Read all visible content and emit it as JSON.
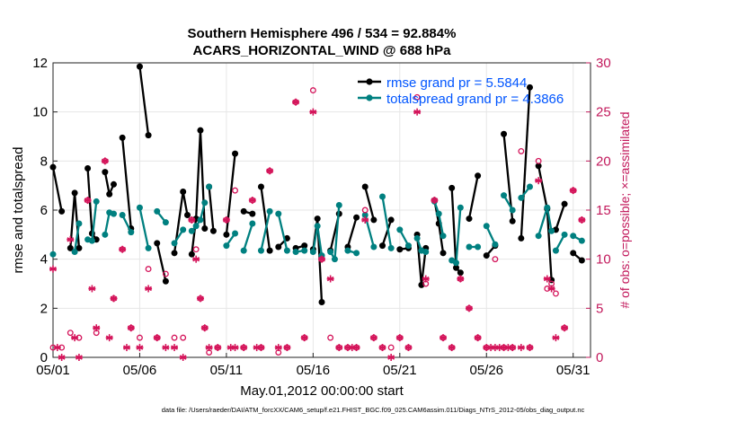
{
  "chart_data": {
    "type": "scatter",
    "title": "Southern Hemisphere 496 / 534 = 92.884%",
    "subtitle": "ACARS_HORIZONTAL_WIND @ 688 hPa",
    "xlabel": "May.01,2012 00:00:00 start",
    "ylabel": "rmse and totalspread",
    "ylabel_right": "# of obs: o=possible; ×=assimilated",
    "footer": "data file: /Users/raeder/DAI/ATM_forcXX/CAM6_setup/f.e21.FHIST_BGC.f09_025.CAM6assim.011/Diags_NTrS_2012-05/obs_diag_output.nc",
    "x_range": [
      1,
      32
    ],
    "ylim": [
      0,
      12
    ],
    "ylim_right": [
      0,
      30
    ],
    "x_ticks": [
      {
        "value": 1,
        "label": "05/01"
      },
      {
        "value": 6,
        "label": "05/06"
      },
      {
        "value": 11,
        "label": "05/11"
      },
      {
        "value": 16,
        "label": "05/16"
      },
      {
        "value": 21,
        "label": "05/21"
      },
      {
        "value": 26,
        "label": "05/26"
      },
      {
        "value": 31,
        "label": "05/31"
      }
    ],
    "y_ticks": [
      0,
      2,
      4,
      6,
      8,
      10,
      12
    ],
    "y_ticks_right": [
      0,
      5,
      10,
      15,
      20,
      25,
      30
    ],
    "legend_position": "top-right",
    "colors": {
      "rmse": "#000000",
      "spread": "#008080",
      "obs": "#d4145a",
      "rightaxis": "#c2185b",
      "grid": "#e6e6e6"
    },
    "series": [
      {
        "name": "rmse grand pr = 5.5844",
        "color": "#000000",
        "points": [
          [
            1,
            7.75
          ],
          [
            1.5,
            5.95
          ],
          [
            2,
            4.45
          ],
          [
            2.25,
            6.7
          ],
          [
            2.5,
            4.45
          ],
          [
            3,
            7.7
          ],
          [
            3.25,
            5.05
          ],
          [
            3.5,
            4.8
          ],
          [
            4,
            7.55
          ],
          [
            4.25,
            6.65
          ],
          [
            4.5,
            7.05
          ],
          [
            5,
            8.95
          ],
          [
            5.5,
            5.25
          ],
          [
            6,
            11.85
          ],
          [
            6.5,
            9.05
          ],
          [
            7,
            4.65
          ],
          [
            7.5,
            3.1
          ],
          [
            8,
            4.25
          ],
          [
            8.5,
            6.75
          ],
          [
            8.75,
            5.8
          ],
          [
            9,
            4.2
          ],
          [
            9.25,
            5.65
          ],
          [
            9.5,
            9.25
          ],
          [
            9.75,
            5.25
          ],
          [
            10,
            6.95
          ],
          [
            10.25,
            5.15
          ],
          [
            11,
            5.0
          ],
          [
            11.5,
            8.3
          ],
          [
            12,
            5.95
          ],
          [
            12.5,
            5.85
          ],
          [
            13,
            6.95
          ],
          [
            13.5,
            4.35
          ],
          [
            14,
            4.5
          ],
          [
            14.5,
            4.85
          ],
          [
            15,
            4.45
          ],
          [
            15.5,
            4.55
          ],
          [
            16,
            4.4
          ],
          [
            16.25,
            5.65
          ],
          [
            16.5,
            2.25
          ],
          [
            17,
            4.35
          ],
          [
            17.5,
            5.85
          ],
          [
            18,
            4.5
          ],
          [
            18.5,
            5.7
          ],
          [
            19,
            6.95
          ],
          [
            19.5,
            5.6
          ],
          [
            20,
            4.55
          ],
          [
            20.5,
            5.6
          ],
          [
            21,
            4.4
          ],
          [
            21.5,
            4.45
          ],
          [
            22,
            5.0
          ],
          [
            22.25,
            2.95
          ],
          [
            22.5,
            4.45
          ],
          [
            23,
            6.4
          ],
          [
            23.25,
            5.45
          ],
          [
            23.5,
            4.25
          ],
          [
            24,
            6.9
          ],
          [
            24.25,
            3.65
          ],
          [
            24.5,
            3.45
          ],
          [
            25,
            5.65
          ],
          [
            25.5,
            7.4
          ],
          [
            26,
            4.15
          ],
          [
            26.5,
            4.55
          ],
          [
            27,
            9.1
          ],
          [
            27.5,
            5.55
          ],
          [
            28,
            4.85
          ],
          [
            28.5,
            11.0
          ],
          [
            29,
            7.8
          ],
          [
            29.5,
            6.05
          ],
          [
            29.75,
            3.15
          ],
          [
            30,
            5.2
          ],
          [
            30.5,
            6.25
          ],
          [
            31,
            4.25
          ],
          [
            31.5,
            3.95
          ]
        ]
      },
      {
        "name": "totalspread grand pr = 4.3866",
        "color": "#008080",
        "points": [
          [
            1,
            4.2
          ],
          [
            2.25,
            4.3
          ],
          [
            2.5,
            5.45
          ],
          [
            3,
            4.8
          ],
          [
            3.25,
            4.75
          ],
          [
            3.5,
            6.35
          ],
          [
            4,
            5.0
          ],
          [
            4.25,
            5.9
          ],
          [
            4.5,
            5.85
          ],
          [
            5,
            5.8
          ],
          [
            5.5,
            5.1
          ],
          [
            6,
            6.1
          ],
          [
            6.5,
            4.45
          ],
          [
            7,
            5.95
          ],
          [
            7.5,
            5.5
          ],
          [
            8,
            4.65
          ],
          [
            8.5,
            5.2
          ],
          [
            9,
            5.15
          ],
          [
            9.25,
            5.35
          ],
          [
            9.5,
            5.6
          ],
          [
            9.75,
            6.3
          ],
          [
            10,
            6.95
          ],
          [
            11,
            4.55
          ],
          [
            11.5,
            5.05
          ],
          [
            12,
            4.35
          ],
          [
            12.5,
            5.45
          ],
          [
            13,
            4.35
          ],
          [
            13.5,
            5.95
          ],
          [
            14,
            5.85
          ],
          [
            14.5,
            4.35
          ],
          [
            15,
            4.3
          ],
          [
            15.5,
            4.35
          ],
          [
            16,
            4.3
          ],
          [
            16.25,
            5.35
          ],
          [
            16.5,
            4.15
          ],
          [
            17,
            4.3
          ],
          [
            17.25,
            4.0
          ],
          [
            17.5,
            6.2
          ],
          [
            18,
            4.35
          ],
          [
            18.5,
            4.25
          ],
          [
            19,
            5.8
          ],
          [
            19.5,
            4.5
          ],
          [
            20,
            6.55
          ],
          [
            20.5,
            4.45
          ],
          [
            21,
            5.2
          ],
          [
            21.5,
            4.55
          ],
          [
            22,
            4.85
          ],
          [
            22.25,
            4.35
          ],
          [
            22.5,
            4.3
          ],
          [
            23,
            6.35
          ],
          [
            23.25,
            5.85
          ],
          [
            23.5,
            4.95
          ],
          [
            24,
            3.95
          ],
          [
            24.25,
            3.85
          ],
          [
            24.5,
            6.1
          ],
          [
            25,
            4.5
          ],
          [
            25.5,
            4.5
          ],
          [
            26,
            5.35
          ],
          [
            26.5,
            4.6
          ],
          [
            27,
            6.6
          ],
          [
            27.5,
            6.0
          ],
          [
            28,
            6.5
          ],
          [
            28.5,
            6.95
          ],
          [
            29,
            4.95
          ],
          [
            29.5,
            6.1
          ],
          [
            29.75,
            5.15
          ],
          [
            30,
            4.35
          ],
          [
            30.5,
            5.0
          ],
          [
            31,
            4.95
          ],
          [
            31.5,
            4.75
          ]
        ]
      }
    ],
    "obs_possible": [
      [
        1,
        1
      ],
      [
        1.5,
        1
      ],
      [
        2,
        2.5
      ],
      [
        2.5,
        2
      ],
      [
        3,
        16
      ],
      [
        3.5,
        2.5
      ],
      [
        4,
        20
      ],
      [
        4.5,
        6
      ],
      [
        5,
        11
      ],
      [
        5.5,
        3
      ],
      [
        6,
        2
      ],
      [
        6.5,
        9
      ],
      [
        7,
        2
      ],
      [
        7.5,
        8.5
      ],
      [
        8,
        2
      ],
      [
        8.5,
        2
      ],
      [
        9,
        14
      ],
      [
        9.25,
        11
      ],
      [
        9.5,
        6
      ],
      [
        9.75,
        3
      ],
      [
        10,
        0.5
      ],
      [
        10.5,
        1
      ],
      [
        11,
        14
      ],
      [
        11.5,
        17
      ],
      [
        12,
        1
      ],
      [
        12.5,
        16
      ],
      [
        13,
        1
      ],
      [
        13.5,
        19
      ],
      [
        14,
        0.5
      ],
      [
        14.5,
        1
      ],
      [
        15,
        26
      ],
      [
        15.5,
        2
      ],
      [
        16,
        27.2
      ],
      [
        16.5,
        10
      ],
      [
        17,
        2
      ],
      [
        17.5,
        1
      ],
      [
        18,
        1
      ],
      [
        18.5,
        1
      ],
      [
        19,
        15
      ],
      [
        19.5,
        2
      ],
      [
        20,
        1
      ],
      [
        20.5,
        1
      ],
      [
        21,
        2
      ],
      [
        21.5,
        1
      ],
      [
        22,
        26.5
      ],
      [
        22.5,
        7.5
      ],
      [
        23,
        16
      ],
      [
        23.5,
        2
      ],
      [
        24,
        1
      ],
      [
        24.5,
        8
      ],
      [
        25,
        5
      ],
      [
        25.5,
        2
      ],
      [
        26,
        1
      ],
      [
        26.5,
        10
      ],
      [
        27,
        1
      ],
      [
        27.5,
        1
      ],
      [
        28,
        21
      ],
      [
        28.5,
        1
      ],
      [
        29,
        20
      ],
      [
        29.5,
        7
      ],
      [
        29.75,
        7.5
      ],
      [
        30,
        6.5
      ],
      [
        30.5,
        3
      ],
      [
        31,
        17
      ],
      [
        31.5,
        14
      ]
    ],
    "obs_assimilated": [
      [
        1,
        9
      ],
      [
        1.25,
        1
      ],
      [
        1.5,
        0
      ],
      [
        2,
        12
      ],
      [
        2.25,
        2
      ],
      [
        2.5,
        0
      ],
      [
        3,
        16
      ],
      [
        3.25,
        7
      ],
      [
        3.5,
        3
      ],
      [
        4,
        20
      ],
      [
        4.25,
        2
      ],
      [
        4.5,
        6
      ],
      [
        5,
        11
      ],
      [
        5.25,
        1
      ],
      [
        5.5,
        3
      ],
      [
        6,
        1
      ],
      [
        6.5,
        7
      ],
      [
        7,
        2
      ],
      [
        7.5,
        1
      ],
      [
        8,
        1
      ],
      [
        8.5,
        0
      ],
      [
        9,
        14
      ],
      [
        9.25,
        10
      ],
      [
        9.5,
        6
      ],
      [
        9.75,
        3
      ],
      [
        10,
        1
      ],
      [
        10.5,
        1
      ],
      [
        11,
        14
      ],
      [
        11.25,
        1
      ],
      [
        11.5,
        1
      ],
      [
        12,
        1
      ],
      [
        12.5,
        16
      ],
      [
        12.75,
        1
      ],
      [
        13,
        1
      ],
      [
        13.5,
        19
      ],
      [
        14,
        1
      ],
      [
        14.5,
        1
      ],
      [
        15,
        26
      ],
      [
        15.5,
        2
      ],
      [
        16,
        25
      ],
      [
        16.5,
        10
      ],
      [
        17,
        8
      ],
      [
        17.5,
        1
      ],
      [
        18,
        1
      ],
      [
        18.25,
        1
      ],
      [
        18.5,
        1
      ],
      [
        19,
        14
      ],
      [
        19.5,
        2
      ],
      [
        20,
        1
      ],
      [
        20.5,
        0
      ],
      [
        21,
        2
      ],
      [
        21.5,
        1
      ],
      [
        22,
        25
      ],
      [
        22.5,
        8
      ],
      [
        23,
        16
      ],
      [
        23.5,
        2
      ],
      [
        24,
        1
      ],
      [
        24.5,
        8
      ],
      [
        25,
        5
      ],
      [
        25.5,
        2
      ],
      [
        26,
        1
      ],
      [
        26.25,
        1
      ],
      [
        26.5,
        1
      ],
      [
        26.75,
        1
      ],
      [
        27,
        1
      ],
      [
        27.25,
        1
      ],
      [
        27.5,
        1
      ],
      [
        28,
        1
      ],
      [
        28.5,
        1
      ],
      [
        29,
        18
      ],
      [
        29.5,
        8
      ],
      [
        29.75,
        7
      ],
      [
        30,
        2
      ],
      [
        30.5,
        3
      ],
      [
        31,
        17
      ],
      [
        31.5,
        14
      ]
    ]
  }
}
